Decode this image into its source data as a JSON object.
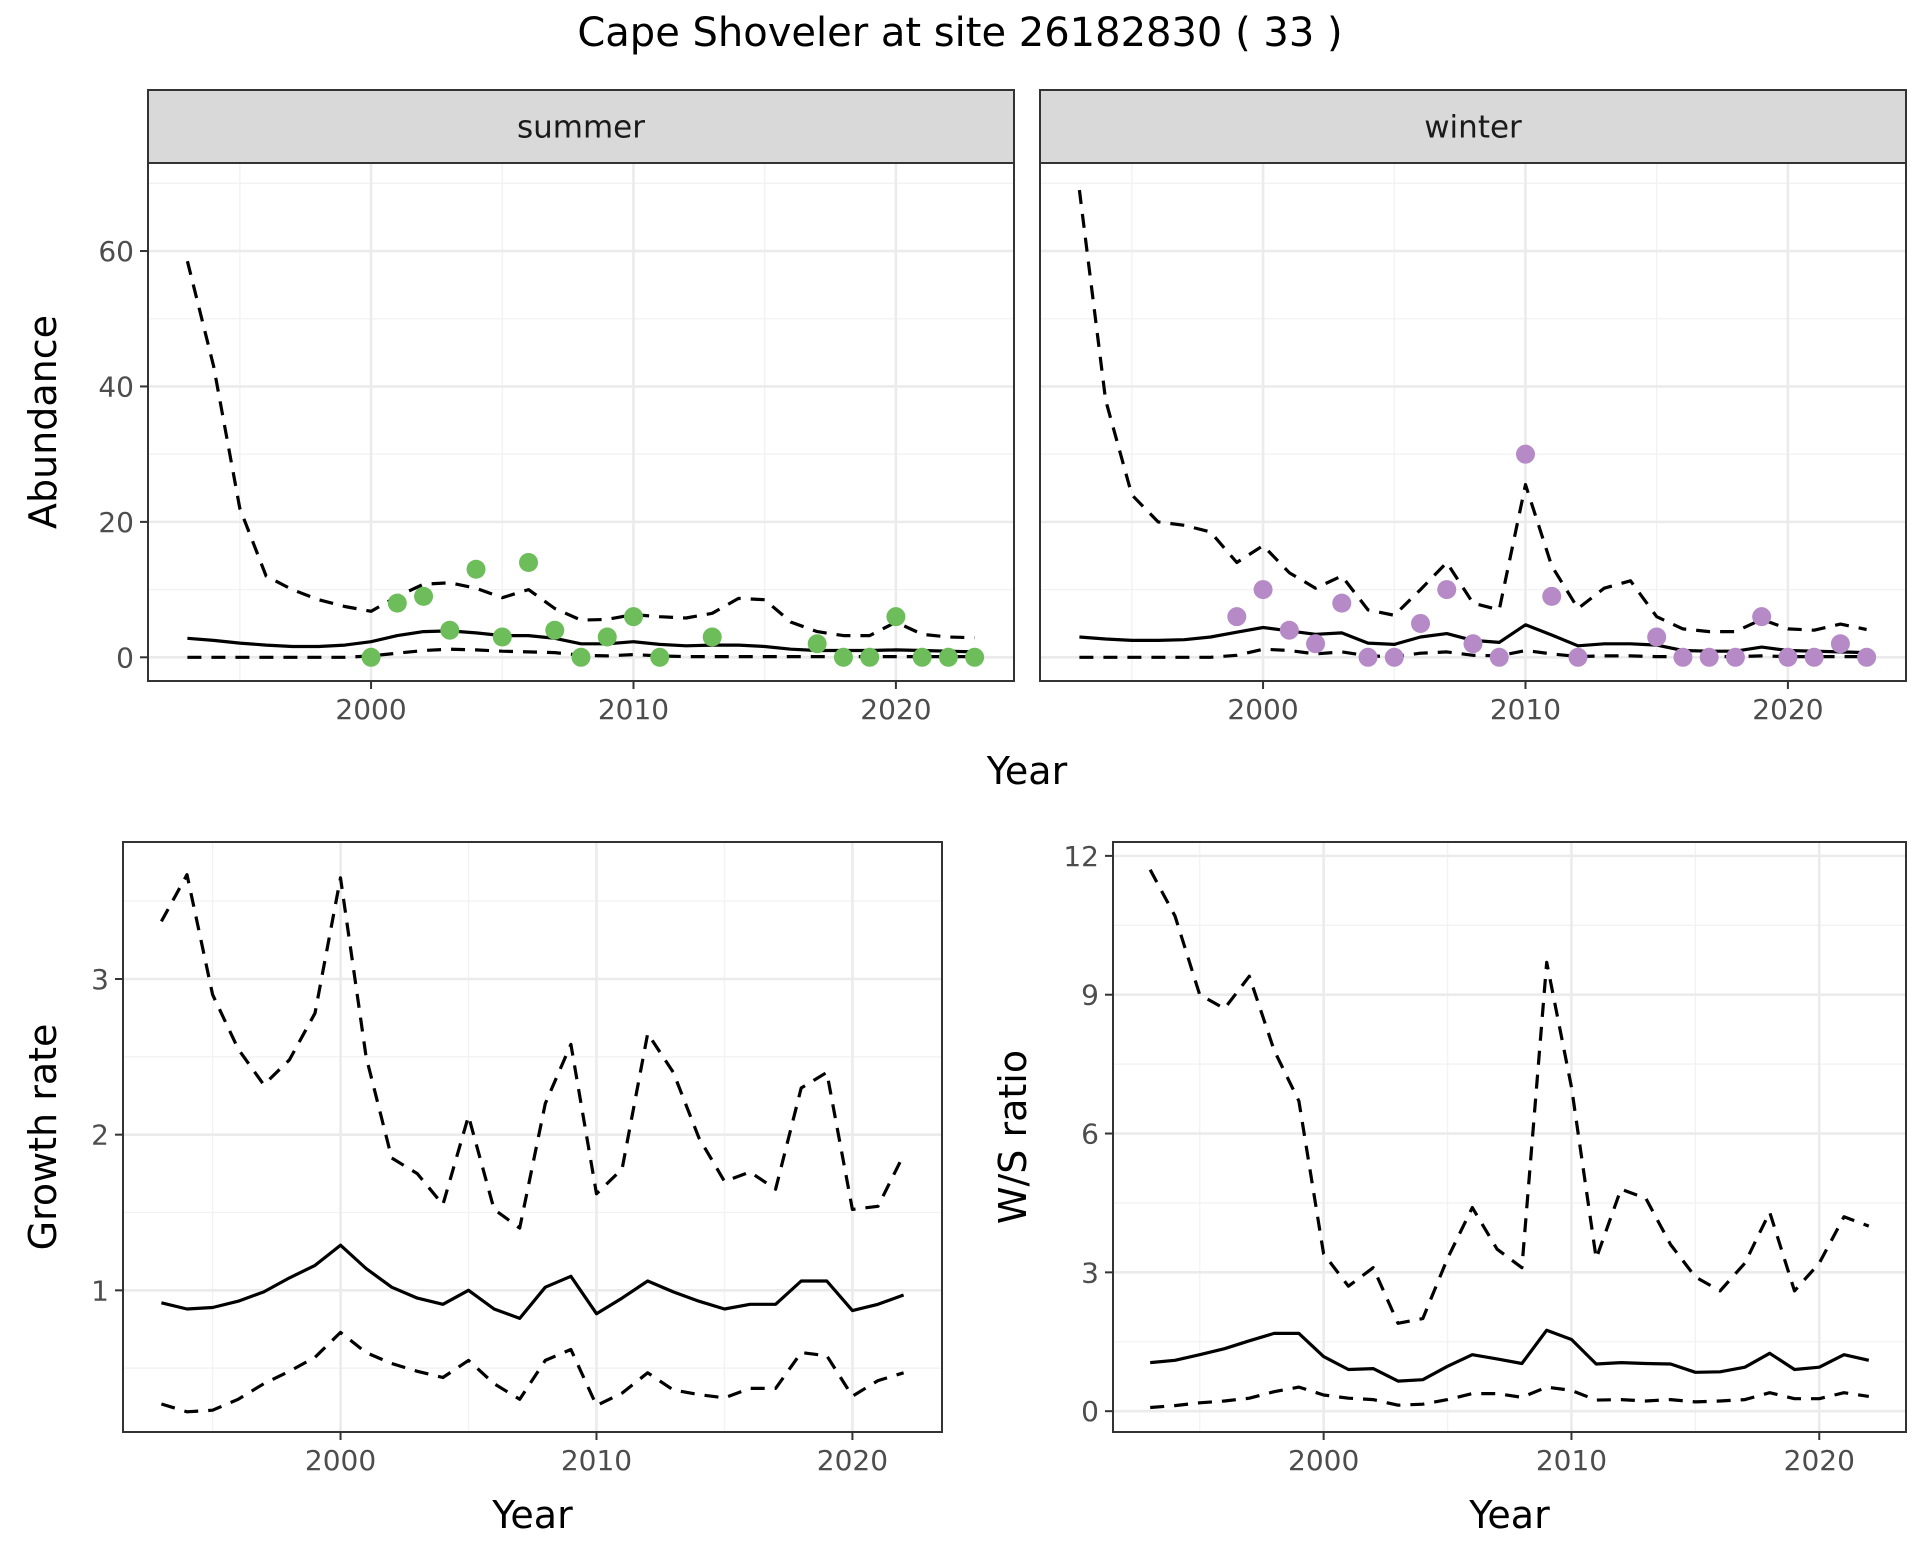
{
  "title": "Cape Shoveler at site 26182830 ( 33 )",
  "colors": {
    "summer_points": "#6dbd5a",
    "winter_points": "#b58ac6"
  },
  "chart_data": [
    {
      "id": "abundance",
      "type": "line",
      "ylabel": "Abundance",
      "xlabel": "Year",
      "xlim": [
        1991.5,
        2024.5
      ],
      "ylim": [
        -3.5,
        73
      ],
      "xticks": [
        2000,
        2010,
        2020
      ],
      "yticks": [
        0,
        20,
        40,
        60
      ],
      "grid": true,
      "facets": [
        {
          "label": "summer",
          "point_color": "#6dbd5a",
          "points": {
            "x": [
              2000,
              2001,
              2002,
              2003,
              2004,
              2005,
              2006,
              2007,
              2008,
              2009,
              2010,
              2011,
              2013,
              2017,
              2018,
              2019,
              2020,
              2021,
              2022,
              2023
            ],
            "y": [
              0,
              8,
              9,
              4,
              13,
              3,
              14,
              4,
              0,
              3,
              6,
              0,
              3,
              2,
              0,
              0,
              6,
              0,
              0,
              0
            ]
          },
          "series": [
            {
              "name": "",
              "style": "solid",
              "x": [
                1993,
                1994,
                1995,
                1996,
                1997,
                1998,
                1999,
                2000,
                2001,
                2002,
                2003,
                2004,
                2005,
                2006,
                2007,
                2008,
                2009,
                2010,
                2011,
                2012,
                2013,
                2014,
                2015,
                2016,
                2017,
                2018,
                2019,
                2020,
                2021,
                2022,
                2023
              ],
              "y": [
                2.8,
                2.5,
                2.1,
                1.8,
                1.6,
                1.6,
                1.8,
                2.3,
                3.2,
                3.8,
                3.9,
                3.6,
                3.2,
                3.2,
                2.8,
                2.0,
                2.0,
                2.3,
                1.9,
                1.7,
                1.8,
                1.8,
                1.6,
                1.2,
                1.0,
                1.0,
                1.0,
                1.1,
                1.0,
                0.9,
                0.8
              ]
            },
            {
              "name": "",
              "style": "dashed",
              "x": [
                1993,
                1994,
                1995,
                1996,
                1997,
                1998,
                1999,
                2000,
                2001,
                2002,
                2003,
                2004,
                2005,
                2006,
                2007,
                2008,
                2009,
                2010,
                2011,
                2012,
                2013,
                2014,
                2015,
                2016,
                2017,
                2018,
                2019,
                2020,
                2021,
                2022,
                2023
              ],
              "y": [
                58.5,
                43,
                22,
                12,
                10,
                8.5,
                7.5,
                6.8,
                9,
                10.8,
                11,
                10.2,
                8.8,
                10,
                7.2,
                5.5,
                5.6,
                6.3,
                6,
                5.8,
                6.5,
                8.7,
                8.5,
                5.2,
                3.8,
                3.2,
                3.2,
                5.2,
                3.4,
                3,
                2.9
              ]
            },
            {
              "name": "",
              "style": "dashed",
              "x": [
                1993,
                1994,
                1995,
                1996,
                1997,
                1998,
                1999,
                2000,
                2001,
                2002,
                2003,
                2004,
                2005,
                2006,
                2007,
                2008,
                2009,
                2010,
                2011,
                2012,
                2013,
                2014,
                2015,
                2016,
                2017,
                2018,
                2019,
                2020,
                2021,
                2022,
                2023
              ],
              "y": [
                0,
                0,
                0,
                0,
                0,
                0,
                0,
                0.2,
                0.6,
                1.0,
                1.2,
                1.1,
                0.9,
                0.8,
                0.7,
                0.3,
                0.2,
                0.4,
                0.2,
                0.1,
                0.1,
                0.1,
                0.1,
                0.1,
                0.1,
                0.1,
                0.1,
                0.1,
                0.1,
                0.1,
                0.1
              ]
            }
          ]
        },
        {
          "label": "winter",
          "point_color": "#b58ac6",
          "points": {
            "x": [
              1999,
              2000,
              2001,
              2002,
              2003,
              2004,
              2005,
              2006,
              2007,
              2008,
              2009,
              2010,
              2011,
              2012,
              2015,
              2016,
              2017,
              2018,
              2019,
              2020,
              2021,
              2022,
              2023
            ],
            "y": [
              6,
              10,
              4,
              2,
              8,
              0,
              0,
              5,
              10,
              2,
              0,
              30,
              9,
              0,
              3,
              0,
              0,
              0,
              6,
              0,
              0,
              2,
              0
            ]
          },
          "series": [
            {
              "name": "",
              "style": "solid",
              "x": [
                1993,
                1994,
                1995,
                1996,
                1997,
                1998,
                1999,
                2000,
                2001,
                2002,
                2003,
                2004,
                2005,
                2006,
                2007,
                2008,
                2009,
                2010,
                2011,
                2012,
                2013,
                2014,
                2015,
                2016,
                2017,
                2018,
                2019,
                2020,
                2021,
                2022,
                2023
              ],
              "y": [
                3.0,
                2.7,
                2.5,
                2.5,
                2.6,
                3.0,
                3.7,
                4.4,
                3.9,
                3.4,
                3.6,
                2.1,
                1.9,
                3.0,
                3.5,
                2.5,
                2.2,
                4.8,
                3.3,
                1.7,
                2.0,
                2.0,
                1.8,
                1.0,
                0.9,
                0.9,
                1.5,
                1.0,
                0.9,
                0.8,
                0.7
              ]
            },
            {
              "name": "",
              "style": "dashed",
              "x": [
                1993,
                1994,
                1995,
                1996,
                1997,
                1998,
                1999,
                2000,
                2001,
                2002,
                2003,
                2004,
                2005,
                2006,
                2007,
                2008,
                2009,
                2010,
                2011,
                2012,
                2013,
                2014,
                2015,
                2016,
                2017,
                2018,
                2019,
                2020,
                2021,
                2022,
                2023
              ],
              "y": [
                69,
                38,
                24,
                20,
                19.5,
                18.5,
                14,
                16.5,
                12.5,
                10.2,
                12,
                7,
                6.2,
                10,
                14,
                8,
                7,
                25.5,
                13.5,
                7.2,
                10.2,
                11.3,
                6,
                4.2,
                3.8,
                3.8,
                5.6,
                4.2,
                4,
                4.9,
                4.1
              ]
            },
            {
              "name": "",
              "style": "dashed",
              "x": [
                1993,
                1994,
                1995,
                1996,
                1997,
                1998,
                1999,
                2000,
                2001,
                2002,
                2003,
                2004,
                2005,
                2006,
                2007,
                2008,
                2009,
                2010,
                2011,
                2012,
                2013,
                2014,
                2015,
                2016,
                2017,
                2018,
                2019,
                2020,
                2021,
                2022,
                2023
              ],
              "y": [
                0,
                0,
                0,
                0,
                0,
                0,
                0.3,
                1.2,
                1.0,
                0.5,
                0.8,
                0.2,
                0.1,
                0.6,
                0.8,
                0.3,
                0.2,
                1.0,
                0.5,
                0.1,
                0.2,
                0.2,
                0.1,
                0.1,
                0.1,
                0.1,
                0.2,
                0.1,
                0.1,
                0.1,
                0.1
              ]
            }
          ]
        }
      ]
    },
    {
      "id": "growth",
      "type": "line",
      "ylabel": "Growth rate",
      "xlabel": "Year",
      "xlim": [
        1991.5,
        2023.5
      ],
      "ylim": [
        0.09,
        3.88
      ],
      "xticks": [
        2000,
        2010,
        2020
      ],
      "yticks": [
        1,
        2,
        3
      ],
      "grid": true,
      "series": [
        {
          "name": "",
          "style": "solid",
          "x": [
            1993,
            1994,
            1995,
            1996,
            1997,
            1998,
            1999,
            2000,
            2001,
            2002,
            2003,
            2004,
            2005,
            2006,
            2007,
            2008,
            2009,
            2010,
            2011,
            2012,
            2013,
            2014,
            2015,
            2016,
            2017,
            2018,
            2019,
            2020,
            2021,
            2022
          ],
          "y": [
            0.92,
            0.88,
            0.89,
            0.93,
            0.99,
            1.08,
            1.16,
            1.29,
            1.14,
            1.02,
            0.95,
            0.91,
            1.0,
            0.88,
            0.82,
            1.02,
            1.09,
            0.85,
            0.95,
            1.06,
            0.99,
            0.93,
            0.88,
            0.91,
            0.91,
            1.06,
            1.06,
            0.87,
            0.91,
            0.97
          ]
        },
        {
          "name": "",
          "style": "dashed",
          "x": [
            1993,
            1994,
            1995,
            1996,
            1997,
            1998,
            1999,
            2000,
            2001,
            2002,
            2003,
            2004,
            2005,
            2006,
            2007,
            2008,
            2009,
            2010,
            2011,
            2012,
            2013,
            2014,
            2015,
            2016,
            2017,
            2018,
            2019,
            2020,
            2021,
            2022
          ],
          "y": [
            3.37,
            3.67,
            2.9,
            2.55,
            2.32,
            2.48,
            2.78,
            3.65,
            2.5,
            1.85,
            1.75,
            1.55,
            2.12,
            1.52,
            1.4,
            2.2,
            2.58,
            1.62,
            1.78,
            2.65,
            2.4,
            1.98,
            1.7,
            1.76,
            1.65,
            2.3,
            2.4,
            1.52,
            1.54,
            1.87
          ]
        },
        {
          "name": "",
          "style": "dashed",
          "x": [
            1993,
            1994,
            1995,
            1996,
            1997,
            1998,
            1999,
            2000,
            2001,
            2002,
            2003,
            2004,
            2005,
            2006,
            2007,
            2008,
            2009,
            2010,
            2011,
            2012,
            2013,
            2014,
            2015,
            2016,
            2017,
            2018,
            2019,
            2020,
            2021,
            2022
          ],
          "y": [
            0.27,
            0.22,
            0.23,
            0.3,
            0.4,
            0.48,
            0.57,
            0.73,
            0.6,
            0.53,
            0.48,
            0.44,
            0.55,
            0.4,
            0.3,
            0.55,
            0.62,
            0.26,
            0.34,
            0.47,
            0.36,
            0.33,
            0.31,
            0.37,
            0.37,
            0.6,
            0.58,
            0.32,
            0.42,
            0.47
          ]
        }
      ]
    },
    {
      "id": "ws_ratio",
      "type": "line",
      "ylabel": "W/S ratio",
      "xlabel": "Year",
      "xlim": [
        1991.5,
        2023.5
      ],
      "ylim": [
        -0.45,
        12.3
      ],
      "xticks": [
        2000,
        2010,
        2020
      ],
      "yticks": [
        0,
        3,
        6,
        9,
        12
      ],
      "grid": true,
      "series": [
        {
          "name": "",
          "style": "solid",
          "x": [
            1993,
            1994,
            1995,
            1996,
            1997,
            1998,
            1999,
            2000,
            2001,
            2002,
            2003,
            2004,
            2005,
            2006,
            2007,
            2008,
            2009,
            2010,
            2011,
            2012,
            2013,
            2014,
            2015,
            2016,
            2017,
            2018,
            2019,
            2020,
            2021,
            2022
          ],
          "y": [
            1.05,
            1.1,
            1.22,
            1.35,
            1.52,
            1.68,
            1.68,
            1.18,
            0.9,
            0.92,
            0.65,
            0.68,
            0.97,
            1.22,
            1.13,
            1.03,
            1.75,
            1.55,
            1.02,
            1.05,
            1.03,
            1.02,
            0.84,
            0.85,
            0.95,
            1.25,
            0.9,
            0.95,
            1.22,
            1.1
          ]
        },
        {
          "name": "",
          "style": "dashed",
          "x": [
            1993,
            1994,
            1995,
            1996,
            1997,
            1998,
            1999,
            2000,
            2001,
            2002,
            2003,
            2004,
            2005,
            2006,
            2007,
            2008,
            2009,
            2010,
            2011,
            2012,
            2013,
            2014,
            2015,
            2016,
            2017,
            2018,
            2019,
            2020,
            2021,
            2022
          ],
          "y": [
            11.7,
            10.7,
            9.0,
            8.7,
            9.4,
            7.8,
            6.7,
            3.4,
            2.7,
            3.1,
            1.9,
            2.0,
            3.3,
            4.4,
            3.5,
            3.1,
            9.7,
            7.0,
            3.3,
            4.8,
            4.6,
            3.6,
            2.9,
            2.6,
            3.2,
            4.3,
            2.6,
            3.2,
            4.2,
            4.0
          ]
        },
        {
          "name": "",
          "style": "dashed",
          "x": [
            1993,
            1994,
            1995,
            1996,
            1997,
            1998,
            1999,
            2000,
            2001,
            2002,
            2003,
            2004,
            2005,
            2006,
            2007,
            2008,
            2009,
            2010,
            2011,
            2012,
            2013,
            2014,
            2015,
            2016,
            2017,
            2018,
            2019,
            2020,
            2021,
            2022
          ],
          "y": [
            0.08,
            0.12,
            0.18,
            0.22,
            0.28,
            0.42,
            0.52,
            0.35,
            0.28,
            0.25,
            0.13,
            0.15,
            0.25,
            0.38,
            0.38,
            0.3,
            0.52,
            0.45,
            0.24,
            0.25,
            0.22,
            0.25,
            0.2,
            0.22,
            0.25,
            0.4,
            0.27,
            0.27,
            0.4,
            0.32
          ]
        }
      ]
    }
  ]
}
